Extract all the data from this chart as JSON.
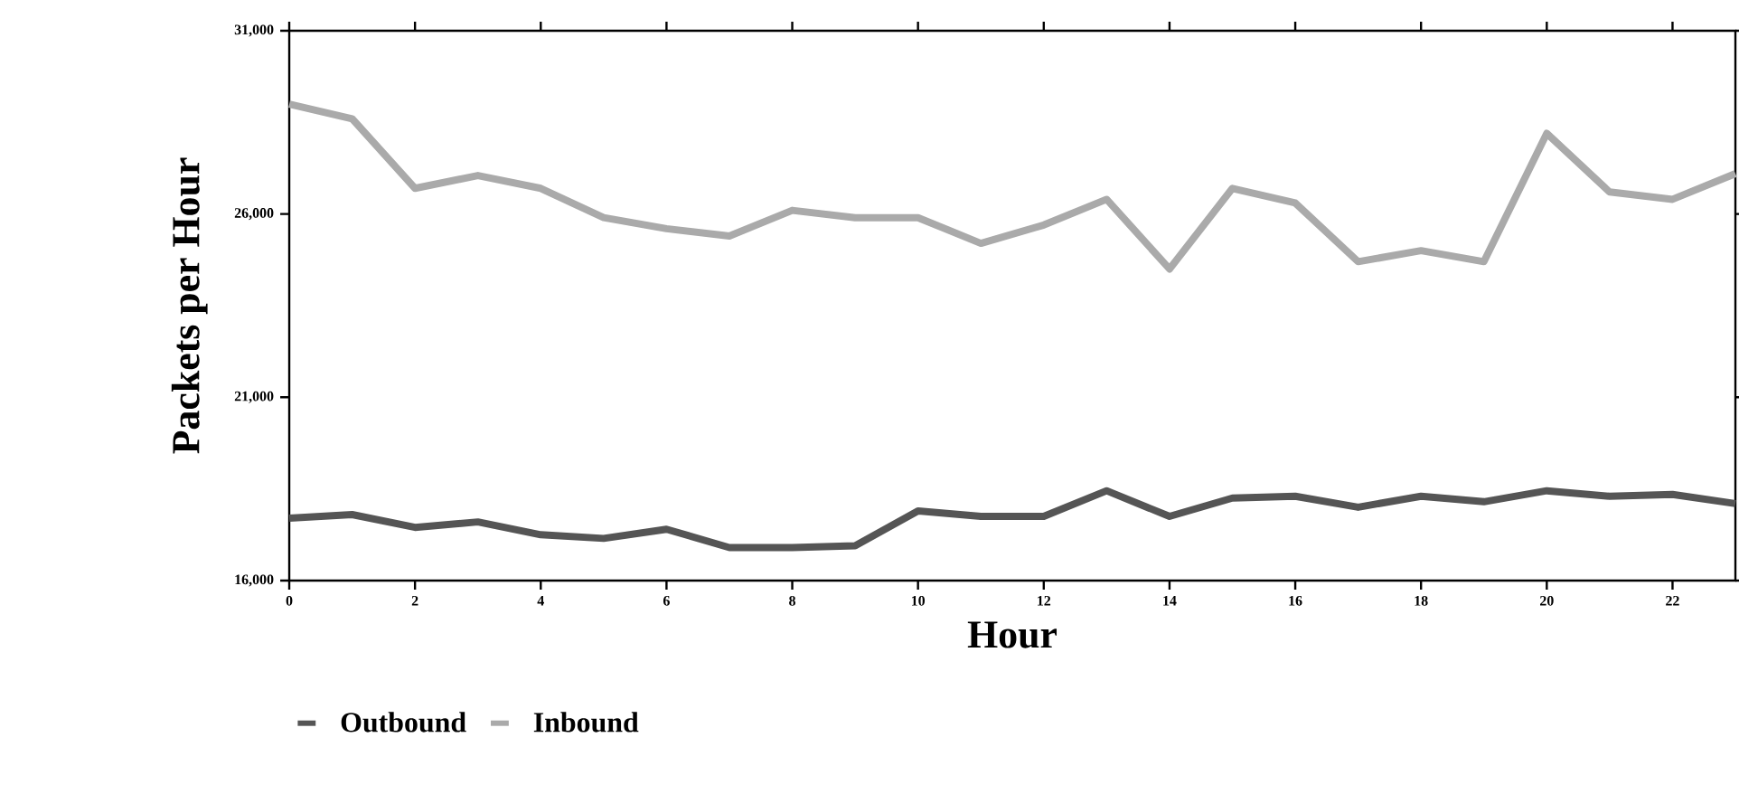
{
  "chart_data": {
    "type": "line",
    "xlabel": "Hour",
    "ylabel": "Packets per Hour",
    "x": [
      0,
      1,
      2,
      3,
      4,
      5,
      6,
      7,
      8,
      9,
      10,
      11,
      12,
      13,
      14,
      15,
      16,
      17,
      18,
      19,
      20,
      21,
      22,
      23
    ],
    "series": [
      {
        "name": "Outbound",
        "color": "#555555",
        "values": [
          17700,
          17800,
          17450,
          17600,
          17250,
          17150,
          17400,
          16900,
          16900,
          16950,
          17900,
          17750,
          17750,
          18450,
          17750,
          18250,
          18300,
          18000,
          18300,
          18150,
          18450,
          18300,
          18350,
          18100
        ]
      },
      {
        "name": "Inbound",
        "color": "#aaaaaa",
        "values": [
          29000,
          28600,
          26700,
          27050,
          26700,
          25900,
          25600,
          25400,
          26100,
          25900,
          25900,
          25200,
          25700,
          26400,
          24500,
          26700,
          26300,
          24700,
          25000,
          24700,
          28200,
          26600,
          26400,
          27100
        ]
      }
    ],
    "xlim": [
      0,
      23
    ],
    "ylim": [
      16000,
      31000
    ],
    "xticks": [
      0,
      2,
      4,
      6,
      8,
      10,
      12,
      14,
      16,
      18,
      20,
      22
    ],
    "yticks": [
      {
        "value": 16000,
        "label": "16,000"
      },
      {
        "value": 21000,
        "label": "21,000"
      },
      {
        "value": 26000,
        "label": "26,000"
      },
      {
        "value": 31000,
        "label": "31,000"
      }
    ],
    "grid": false,
    "legend": "bottom",
    "marker": "none",
    "line_style": "solid"
  }
}
